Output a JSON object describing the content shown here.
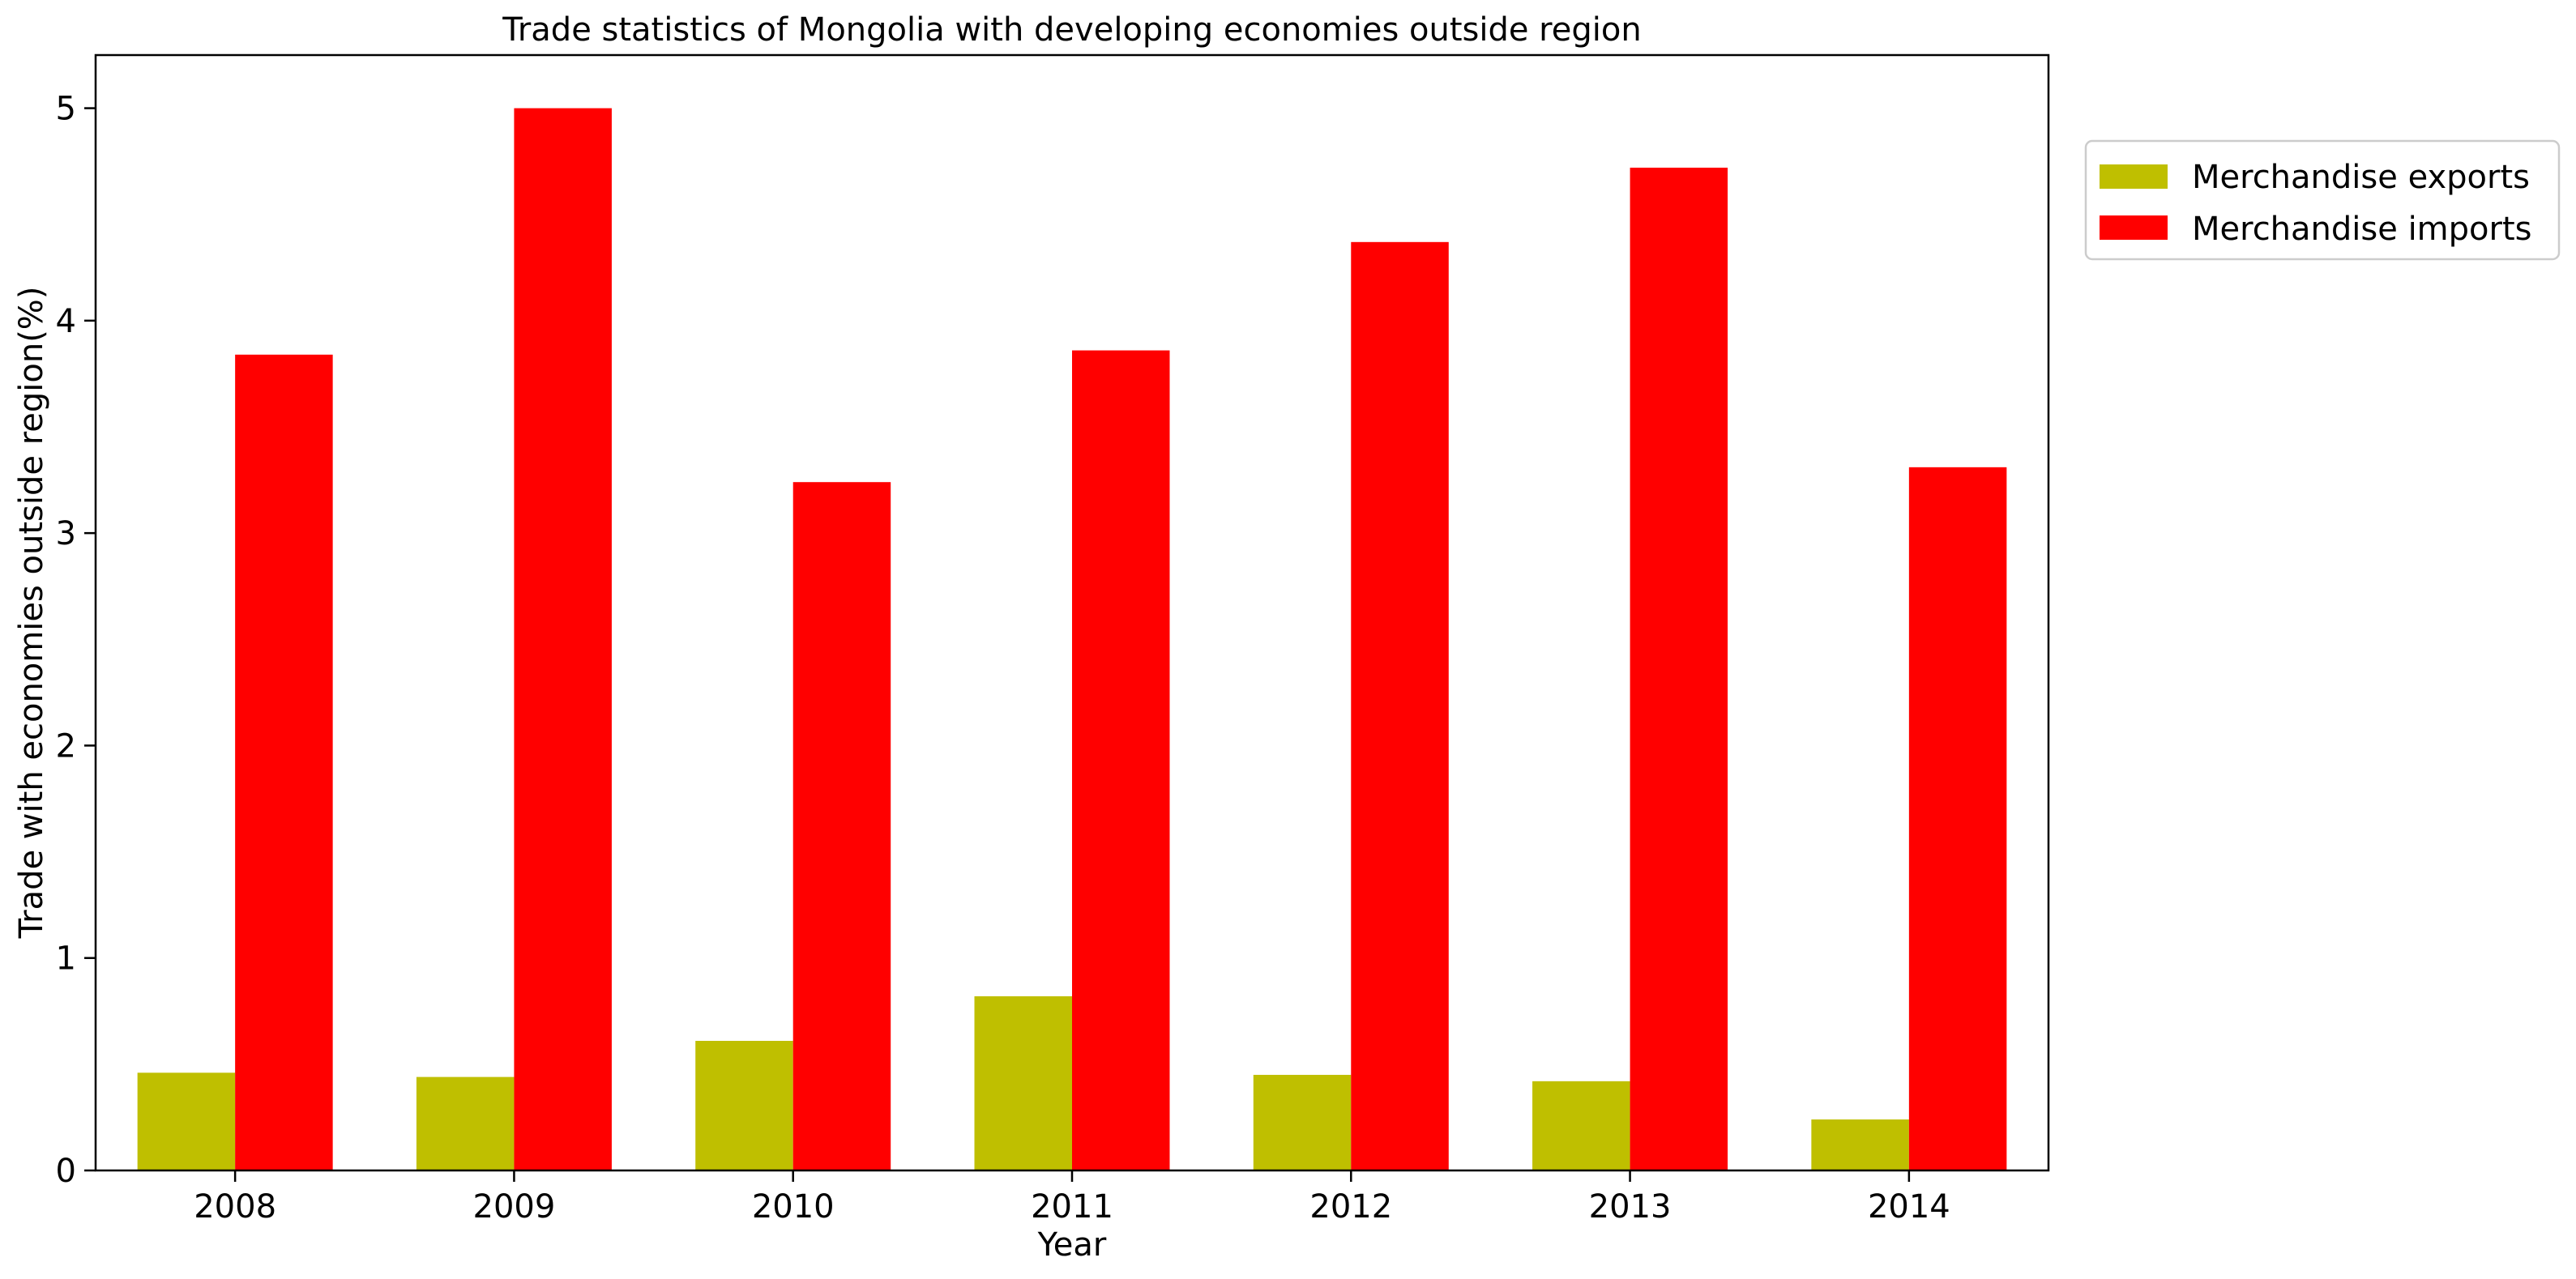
{
  "chart_data": {
    "type": "bar",
    "title": "Trade statistics of Mongolia with developing economies outside region",
    "xlabel": "Year",
    "ylabel": "Trade with economies outside region(%)",
    "categories": [
      "2008",
      "2009",
      "2010",
      "2011",
      "2012",
      "2013",
      "2014"
    ],
    "series": [
      {
        "name": "Merchandise exports",
        "color": "#bfbf00",
        "values": [
          0.46,
          0.44,
          0.61,
          0.82,
          0.45,
          0.42,
          0.24
        ]
      },
      {
        "name": "Merchandise imports",
        "color": "#ff0000",
        "values": [
          3.84,
          5.0,
          3.24,
          3.86,
          4.37,
          4.72,
          3.31
        ]
      }
    ],
    "ylim": [
      0,
      5.25
    ],
    "yticks": [
      "0",
      "1",
      "2",
      "3",
      "4",
      "5"
    ],
    "grid": false,
    "legend_position": "upper right, outside plot"
  }
}
